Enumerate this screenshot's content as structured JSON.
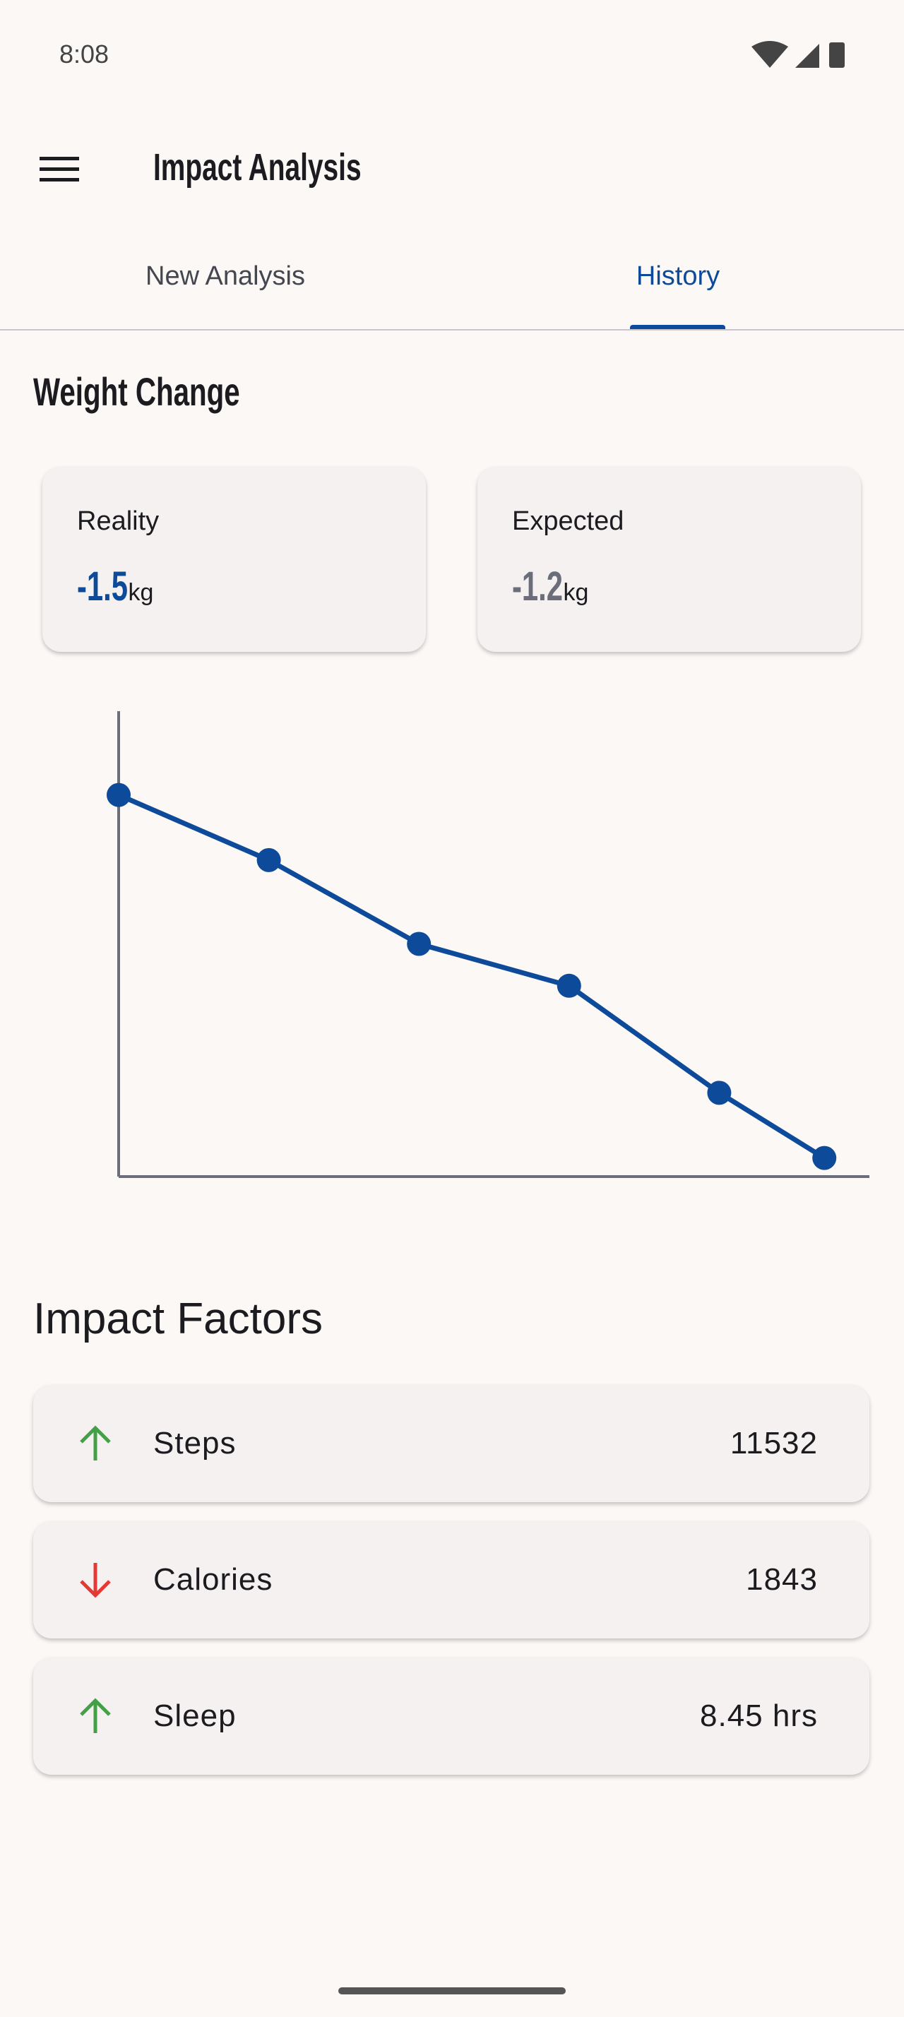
{
  "status_bar": {
    "time": "8:08"
  },
  "app_bar": {
    "title": "Impact Analysis"
  },
  "tabs": [
    "New Analysis",
    "History"
  ],
  "weight_change": {
    "title": "Weight Change",
    "cards": [
      {
        "label": "Reality",
        "value": -1.5,
        "unit": "kg"
      },
      {
        "label": "Expected",
        "value": -1.2,
        "unit": "kg"
      }
    ],
    "chart": {
      "type": "line",
      "x": [
        0,
        20,
        40,
        60,
        80,
        94
      ],
      "values": [
        82,
        68,
        50,
        41,
        18,
        4
      ],
      "xlim": [
        0,
        100
      ],
      "ylim": [
        0,
        100
      ],
      "color": "#0d4a9a"
    }
  },
  "impact_factors": {
    "title": "Impact Factors",
    "items": [
      {
        "label": "Steps",
        "value": 11532
      },
      {
        "label": "Calories",
        "value": 1843
      },
      {
        "label": "Sleep",
        "value": "8.45 hrs"
      }
    ]
  }
}
